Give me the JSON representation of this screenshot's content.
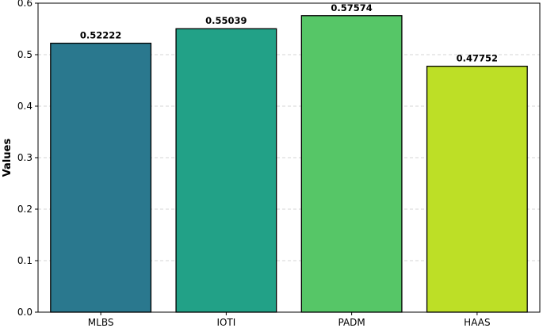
{
  "chart_data": {
    "type": "bar",
    "categories": [
      "MLBS",
      "IOTI",
      "PADM",
      "HAAS"
    ],
    "values": [
      0.52222,
      0.55039,
      0.57574,
      0.47752
    ],
    "data_labels": [
      "0.52222",
      "0.55039",
      "0.57574",
      "0.47752"
    ],
    "colors": [
      "#2a788e",
      "#22a187",
      "#56c667",
      "#bddf26"
    ],
    "title": "",
    "xlabel": "",
    "ylabel": "Values",
    "ylim": [
      0,
      0.6
    ],
    "yticks": [
      0.0,
      0.1,
      0.2,
      0.3,
      0.4,
      0.5,
      0.6
    ],
    "ytick_labels": [
      "0.0",
      "0.1",
      "0.2",
      "0.3",
      "0.4",
      "0.5",
      "0.6"
    ],
    "grid": "y-dashed",
    "legend": "none"
  }
}
